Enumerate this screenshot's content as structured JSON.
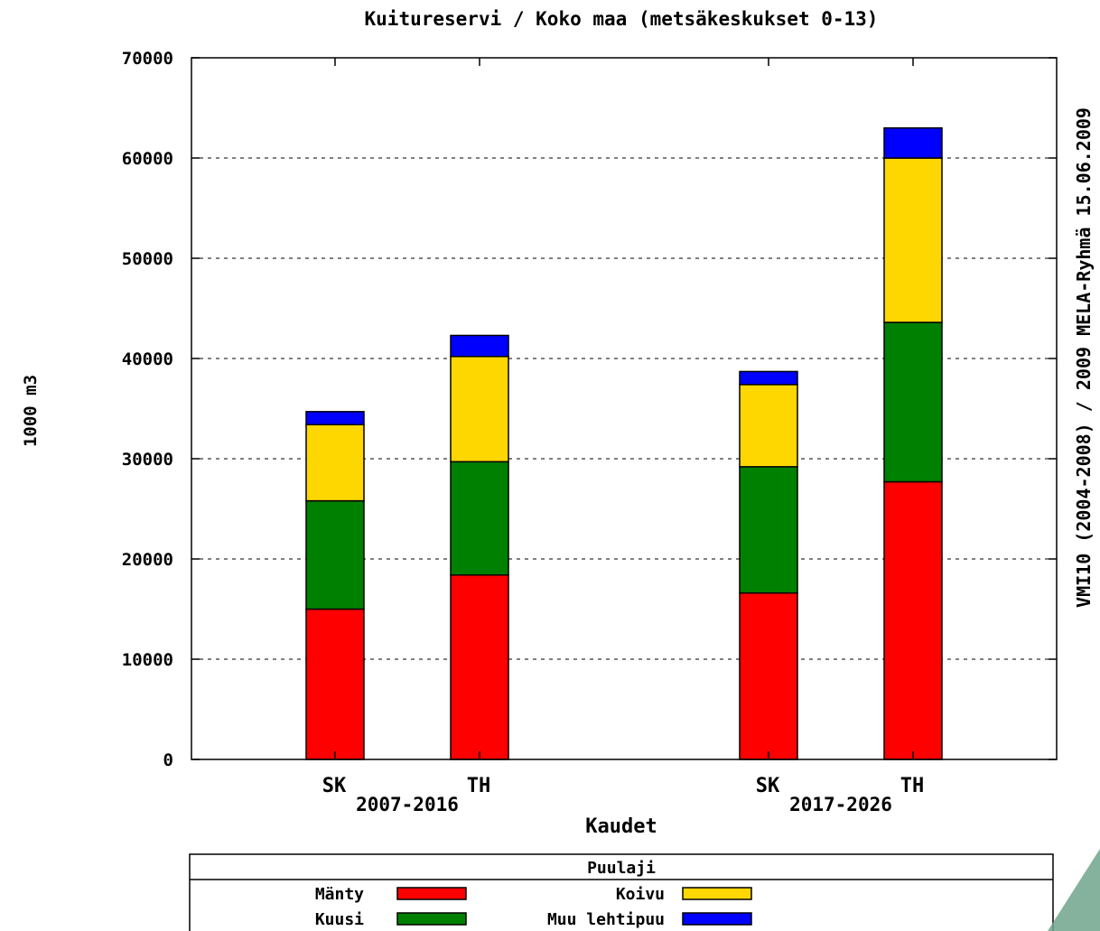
{
  "chart_data": {
    "type": "bar",
    "stacked": true,
    "title": "Kuitureservi / Koko maa (metsäkeskukset 0-13)",
    "ylabel": "1000 m3",
    "xlabel": "Kaudet",
    "side_note": "VMI10 (2004-2008) / 2009 MELA-Ryhmä 15.06.2009",
    "ylim": [
      0,
      70000
    ],
    "yticks": [
      "0",
      "10000",
      "20000",
      "30000",
      "40000",
      "50000",
      "60000",
      "70000"
    ],
    "grid": true,
    "groups": [
      {
        "label": "2007-2016",
        "bars": [
          "SK",
          "TH"
        ]
      },
      {
        "label": "2017-2026",
        "bars": [
          "SK",
          "TH"
        ]
      }
    ],
    "categories": [
      "SK 2007-2016",
      "TH 2007-2016",
      "SK 2017-2026",
      "TH 2017-2026"
    ],
    "series": [
      {
        "name": "Mänty",
        "color": "#ff0000",
        "values": [
          15000,
          18400,
          16600,
          27700
        ]
      },
      {
        "name": "Kuusi",
        "color": "#008000",
        "values": [
          10800,
          11300,
          12600,
          15900
        ]
      },
      {
        "name": "Koivu",
        "color": "#ffd700",
        "values": [
          7600,
          10500,
          8200,
          16400
        ]
      },
      {
        "name": "Muu lehtipuu",
        "color": "#0000ff",
        "values": [
          1300,
          2100,
          1300,
          3000
        ]
      }
    ],
    "legend": {
      "title": "Puulaji",
      "placement": "bottom",
      "entries": [
        "Mänty",
        "Koivu",
        "Kuusi",
        "Muu lehtipuu"
      ]
    }
  }
}
